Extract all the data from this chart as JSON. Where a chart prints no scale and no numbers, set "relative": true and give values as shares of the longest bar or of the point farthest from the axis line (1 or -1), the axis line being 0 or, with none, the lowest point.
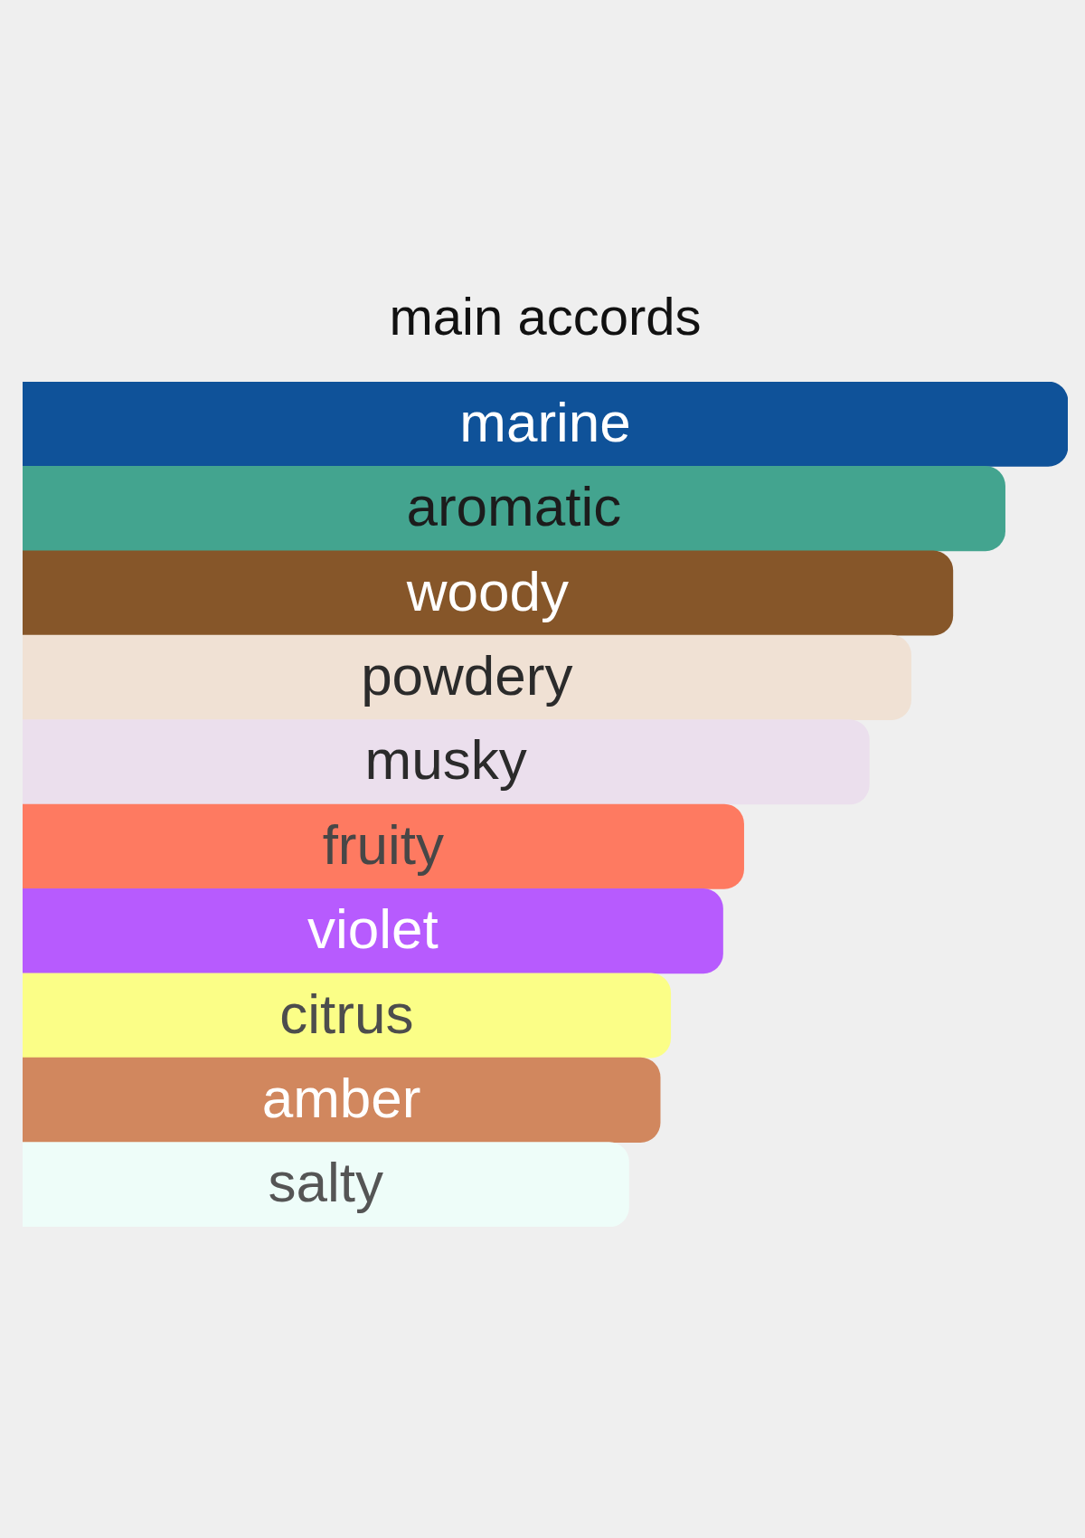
{
  "chart_data": {
    "type": "bar",
    "title": "main accords",
    "orientation": "horizontal",
    "relative": true,
    "categories": [
      "marine",
      "aromatic",
      "woody",
      "powdery",
      "musky",
      "fruity",
      "violet",
      "citrus",
      "amber",
      "salty"
    ],
    "values": [
      1,
      0.94,
      0.89,
      0.85,
      0.81,
      0.69,
      0.67,
      0.62,
      0.61,
      0.58
    ],
    "colors": [
      "#0f5299",
      "#43a48f",
      "#865629",
      "#f0e1d4",
      "#ebdfed",
      "#fe7a61",
      "#b75bfe",
      "#fbfe87",
      "#d1875e",
      "#eefdf9"
    ]
  }
}
